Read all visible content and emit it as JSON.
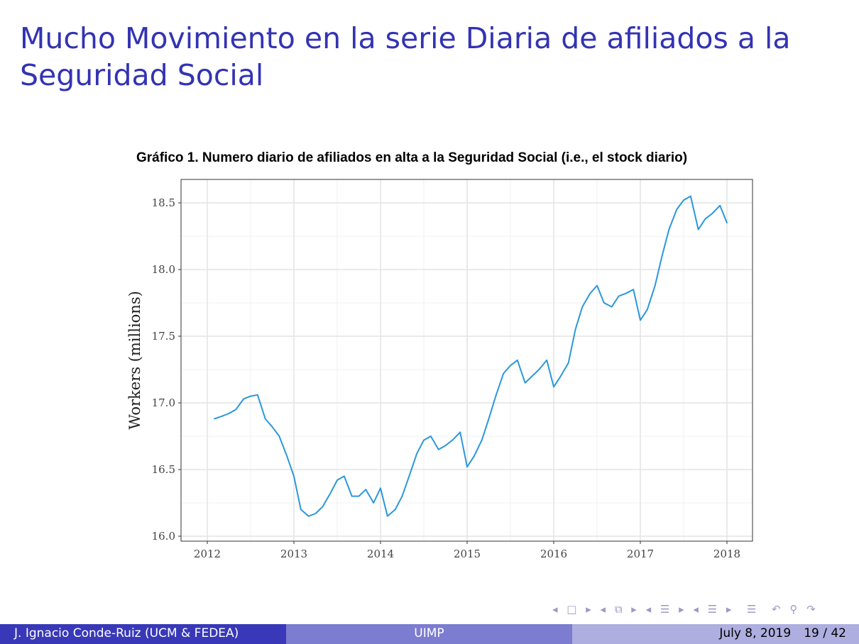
{
  "slide": {
    "title": "Mucho Movimiento en la serie Diaria de afiliados a la Seguridad Social"
  },
  "footer": {
    "author": "J. Ignacio Conde-Ruiz (UCM & FEDEA)",
    "institution": "UIMP",
    "date": "July 8, 2019",
    "page": "19 / 42"
  },
  "nav_icons": [
    "arrow-left-icon",
    "frame-icon",
    "arrow-right-icon",
    "arrow-left-icon",
    "subsection-icon",
    "arrow-right-icon",
    "arrow-left-icon",
    "section-icon",
    "arrow-right-icon",
    "arrow-left-icon",
    "section-icon",
    "arrow-right-icon",
    "align-icon",
    "undo-icon",
    "search-icon",
    "redo-icon"
  ],
  "chart_data": {
    "type": "line",
    "title": "Gráfico 1. Numero diario de afiliados en alta a la Seguridad Social (i.e., el stock diario)",
    "xlabel": "",
    "ylabel": "Workers (millions)",
    "xlim": [
      2011.7,
      2018.3
    ],
    "ylim": [
      15.98,
      18.65
    ],
    "x_ticks": [
      "2012",
      "2013",
      "2014",
      "2015",
      "2016",
      "2017",
      "2018"
    ],
    "y_ticks": [
      "16.0",
      "16.5",
      "17.0",
      "17.5",
      "18.0",
      "18.5"
    ],
    "grid": true,
    "line_color": "#2b97dc",
    "series": [
      {
        "x": [
          2012.08,
          2012.17,
          2012.25,
          2012.33,
          2012.42,
          2012.5,
          2012.58,
          2012.67,
          2012.75,
          2012.83,
          2012.92,
          2013.0,
          2013.08,
          2013.17,
          2013.25,
          2013.33,
          2013.42,
          2013.5,
          2013.58,
          2013.67,
          2013.75,
          2013.83,
          2013.92,
          2014.0,
          2014.08,
          2014.17,
          2014.25,
          2014.33,
          2014.42,
          2014.5,
          2014.58,
          2014.67,
          2014.75,
          2014.83,
          2014.92,
          2015.0,
          2015.08,
          2015.17,
          2015.25,
          2015.33,
          2015.42,
          2015.5,
          2015.58,
          2015.67,
          2015.75,
          2015.83,
          2015.92,
          2016.0,
          2016.08,
          2016.17,
          2016.25,
          2016.33,
          2016.42,
          2016.5,
          2016.58,
          2016.67,
          2016.75,
          2016.83,
          2016.92,
          2017.0,
          2017.08,
          2017.17,
          2017.25,
          2017.33,
          2017.42,
          2017.5,
          2017.58,
          2017.67,
          2017.75,
          2017.83,
          2017.92,
          2018.0
        ],
        "values": [
          16.88,
          16.9,
          16.92,
          16.95,
          17.03,
          17.05,
          17.06,
          16.88,
          16.82,
          16.75,
          16.6,
          16.45,
          16.2,
          16.15,
          16.17,
          16.22,
          16.32,
          16.42,
          16.45,
          16.3,
          16.3,
          16.35,
          16.25,
          16.36,
          16.15,
          16.2,
          16.3,
          16.45,
          16.62,
          16.72,
          16.75,
          16.65,
          16.68,
          16.72,
          16.78,
          16.52,
          16.6,
          16.72,
          16.88,
          17.05,
          17.22,
          17.28,
          17.32,
          17.15,
          17.2,
          17.25,
          17.32,
          17.12,
          17.2,
          17.3,
          17.55,
          17.72,
          17.82,
          17.88,
          17.75,
          17.72,
          17.8,
          17.82,
          17.85,
          17.62,
          17.7,
          17.88,
          18.1,
          18.3,
          18.45,
          18.52,
          18.55,
          18.3,
          18.38,
          18.42,
          18.48,
          18.35
        ]
      }
    ]
  }
}
